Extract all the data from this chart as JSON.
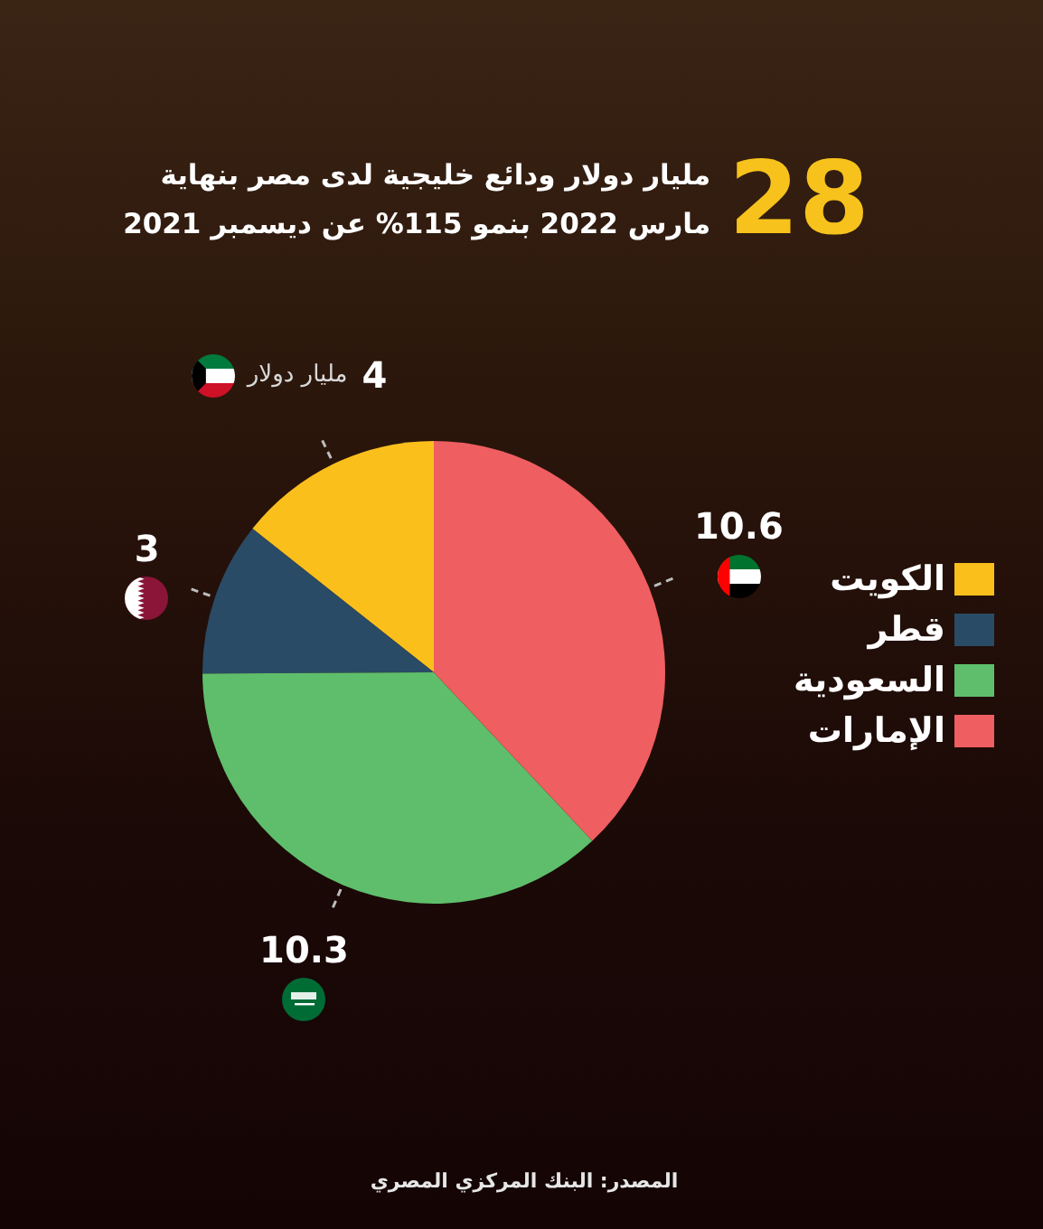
{
  "chart_data": {
    "type": "pie",
    "title": "28",
    "subtitle": "مليار دولار ودائع خليجية لدى مصر بنهاية مارس 2022 بنمو 115% عن ديسمبر 2021",
    "categories": [
      "الكويت",
      "قطر",
      "السعودية",
      "الإمارات"
    ],
    "values": [
      4,
      3,
      10.3,
      10.6
    ],
    "colors": [
      "#fbbf1c",
      "#2a4b66",
      "#5fbe6b",
      "#ef5e61"
    ],
    "data_labels": true,
    "legend": "right",
    "annotations": [
      {
        "text": "مليار دولار",
        "x": "الكويت"
      },
      "المصدر: البنك المركزي المصري"
    ]
  }
}
